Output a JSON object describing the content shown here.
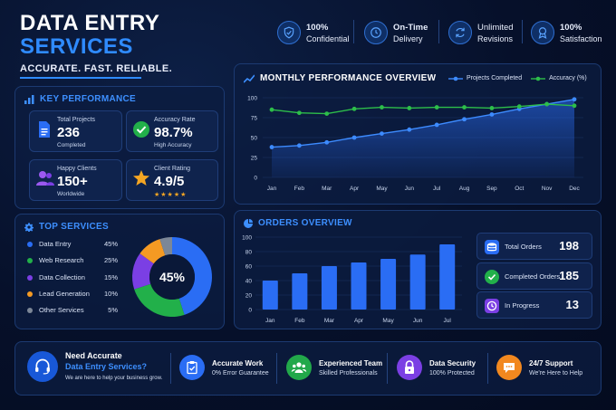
{
  "header": {
    "title_line1": "DATA ENTRY",
    "title_line2": "SERVICES",
    "tagline": "ACCURATE. FAST. RELIABLE."
  },
  "badges": [
    {
      "bold": "100%",
      "text": "Confidential",
      "icon": "shield-check-icon"
    },
    {
      "bold": "On-Time",
      "text": "Delivery",
      "icon": "clock-icon"
    },
    {
      "bold": "Unlimited",
      "text": "Revisions",
      "icon": "refresh-icon"
    },
    {
      "bold": "100%",
      "text": "Satisfaction",
      "icon": "award-ribbon-icon"
    }
  ],
  "key_performance": {
    "title": "KEY PERFORMANCE",
    "cards": [
      {
        "label": "Total Projects",
        "value": "236",
        "sub": "Completed",
        "icon": "document-icon"
      },
      {
        "label": "Accuracy Rate",
        "value": "98.7%",
        "sub": "High Accuracy",
        "icon": "check-circle-icon"
      },
      {
        "label": "Happy Clients",
        "value": "150+",
        "sub": "Worldwide",
        "icon": "users-icon"
      },
      {
        "label": "Client Rating",
        "value": "4.9/5",
        "sub": "★★★★★",
        "icon": "star-icon"
      }
    ]
  },
  "top_services": {
    "title": "TOP SERVICES",
    "center_label": "45%",
    "items": [
      {
        "name": "Data Entry",
        "percent": "45%",
        "value": 45,
        "color": "#2a6df4"
      },
      {
        "name": "Web Research",
        "percent": "25%",
        "value": 25,
        "color": "#22b04a"
      },
      {
        "name": "Data Collection",
        "percent": "15%",
        "value": 15,
        "color": "#7b3fe4"
      },
      {
        "name": "Lead Generation",
        "percent": "10%",
        "value": 10,
        "color": "#f59a23"
      },
      {
        "name": "Other Services",
        "percent": "5%",
        "value": 5,
        "color": "#7c8797"
      }
    ]
  },
  "monthly": {
    "title": "MONTHLY PERFORMANCE OVERVIEW",
    "legend": [
      {
        "name": "Projects Completed",
        "color": "#3d8bff"
      },
      {
        "name": "Accuracy (%)",
        "color": "#2dbe4a"
      }
    ]
  },
  "orders": {
    "title": "ORDERS OVERVIEW",
    "stats": [
      {
        "label": "Total Orders",
        "value": "198",
        "color": "#2a6df4",
        "icon": "database-icon"
      },
      {
        "label": "Completed Orders",
        "value": "185",
        "color": "#22b04a",
        "icon": "check-circle-icon"
      },
      {
        "label": "In Progress",
        "value": "13",
        "color": "#7b3fe4",
        "icon": "clock-icon"
      }
    ]
  },
  "footer": {
    "cta_title": "Need Accurate",
    "cta_highlight": "Data Entry Services?",
    "cta_sub": "We are here to help your business grow.",
    "items": [
      {
        "title": "Accurate Work",
        "sub": "0% Error Guarantee",
        "color": "#2a6df4",
        "icon": "clipboard-check-icon"
      },
      {
        "title": "Experienced Team",
        "sub": "Skilled Professionals",
        "color": "#22a84a",
        "icon": "team-icon"
      },
      {
        "title": "Data Security",
        "sub": "100% Protected",
        "color": "#7b3fe4",
        "icon": "lock-icon"
      },
      {
        "title": "24/7 Support",
        "sub": "We're Here to Help",
        "color": "#f2881f",
        "icon": "chat-icon"
      }
    ]
  },
  "chart_data": [
    {
      "type": "line",
      "title": "MONTHLY PERFORMANCE OVERVIEW",
      "x": [
        "Jan",
        "Feb",
        "Mar",
        "Apr",
        "May",
        "Jun",
        "Jul",
        "Aug",
        "Sep",
        "Oct",
        "Nov",
        "Dec"
      ],
      "ylim": [
        0,
        100
      ],
      "yticks": [
        0,
        25,
        50,
        75,
        100
      ],
      "grid": true,
      "legend": "top-right",
      "series": [
        {
          "name": "Projects Completed",
          "values": [
            38,
            40,
            44,
            50,
            55,
            60,
            66,
            73,
            79,
            86,
            92,
            98
          ],
          "color": "#3d8bff"
        },
        {
          "name": "Accuracy (%)",
          "values": [
            85,
            81,
            80,
            86,
            88,
            87,
            88,
            88,
            87,
            89,
            92,
            90
          ],
          "color": "#2dbe4a"
        }
      ]
    },
    {
      "type": "bar",
      "title": "ORDERS OVERVIEW",
      "categories": [
        "Jan",
        "Feb",
        "Mar",
        "Apr",
        "May",
        "Jun",
        "Jul"
      ],
      "values": [
        40,
        50,
        60,
        65,
        70,
        76,
        90
      ],
      "ylim": [
        0,
        100
      ],
      "yticks": [
        0,
        20,
        40,
        60,
        80,
        100
      ],
      "grid": true,
      "color": "#2a6df4"
    },
    {
      "type": "pie",
      "title": "TOP SERVICES",
      "categories": [
        "Data Entry",
        "Web Research",
        "Data Collection",
        "Lead Generation",
        "Other Services"
      ],
      "values": [
        45,
        25,
        15,
        10,
        5
      ]
    }
  ]
}
